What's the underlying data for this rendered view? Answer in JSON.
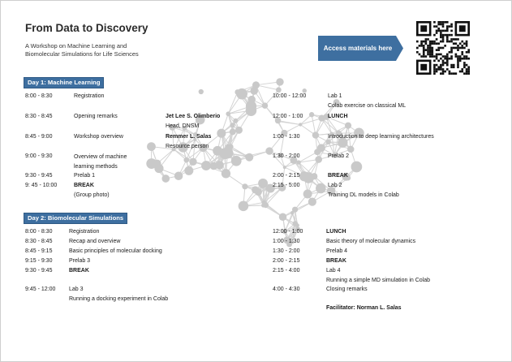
{
  "title": "From Data to Discovery",
  "subtitle": "A Workshop on Machine Learning and Biomolecular Simulations for Life Sciences",
  "access_button": "Access materials here",
  "day1": {
    "header": "Day 1: Machine Learning",
    "left": [
      {
        "time": "8:00 - 8:30",
        "activity": "Registration"
      },
      {
        "time": "8:30 - 8:45",
        "activity": "Opening remarks",
        "person": "Jet Lee S. Olimberio",
        "role": "Head, DNSM"
      },
      {
        "time": "8:45 - 9:00",
        "activity": "Workshop overview",
        "person": "Remmer L. Salas",
        "role": "Resource person"
      },
      {
        "time": "9:00 - 9:30",
        "activity": "Overview of machine learning methods"
      },
      {
        "time": "9:30 - 9:45",
        "activity": "Prelab 1"
      },
      {
        "time": "9: 45 - 10:00",
        "activity": "BREAK",
        "note": "(Group photo)"
      }
    ],
    "right": [
      {
        "time": "10:00 - 12:00",
        "activity": "Lab 1",
        "note": "Colab exercise on classical ML"
      },
      {
        "time": "12:00 - 1:00",
        "activity": "LUNCH"
      },
      {
        "time": "1:00 - 1:30",
        "activity": "Introduction to deep learning architectures"
      },
      {
        "time": "1:30 - 2:00",
        "activity": "Prelab 2"
      },
      {
        "time": "2:00 - 2:15",
        "activity": "BREAK"
      },
      {
        "time": "2:15 - 5:00",
        "activity": "Lab 2",
        "note": "Training DL models in Colab"
      }
    ]
  },
  "day2": {
    "header": "Day 2: Biomolecular Simulations",
    "left": [
      {
        "time": "8:00 - 8:30",
        "activity": "Registration"
      },
      {
        "time": "8:30 - 8:45",
        "activity": "Recap and overview"
      },
      {
        "time": "8:45 - 9:15",
        "activity": "Basic principles of molecular docking"
      },
      {
        "time": "9:15 - 9:30",
        "activity": "Prelab 3"
      },
      {
        "time": "9:30 - 9:45",
        "activity": "BREAK"
      },
      {
        "time": "9:45 - 12:00",
        "activity": "Lab 3",
        "note": "Running a docking experiment in Colab"
      }
    ],
    "right": [
      {
        "time": "12:00 - 1:00",
        "activity": "LUNCH"
      },
      {
        "time": "1:00 - 1:30",
        "activity": "Basic theory of molecular dynamics"
      },
      {
        "time": "1:30 - 2:00",
        "activity": "Prelab 4"
      },
      {
        "time": "2:00 - 2:15",
        "activity": "BREAK"
      },
      {
        "time": "2:15 - 4:00",
        "activity": "Lab 4",
        "note": "Running a simple MD simulation in Colab"
      },
      {
        "time": "4:00 - 4:30",
        "activity": "Closing remarks"
      }
    ],
    "facilitator": "Facilitator: Norman L. Salas"
  },
  "colors": {
    "accent": "#3e6fa0",
    "network": "#cfcfcf"
  },
  "icons": {
    "qr": "qr-code-icon",
    "background": "brain-network-icon"
  }
}
